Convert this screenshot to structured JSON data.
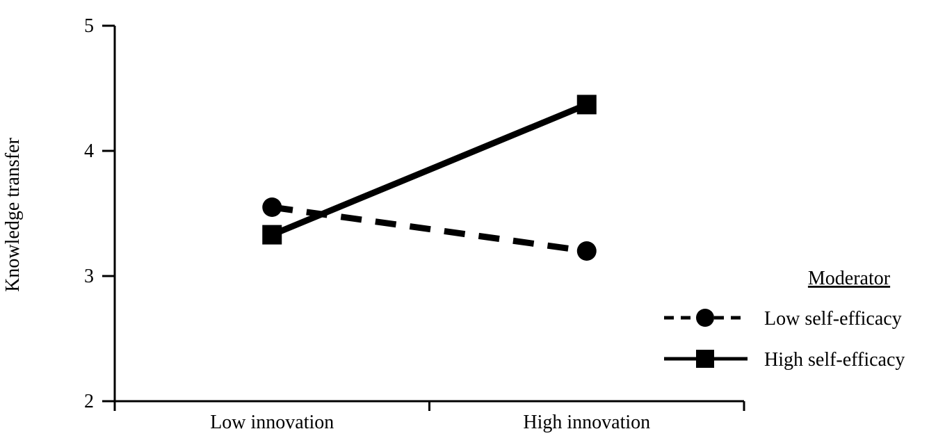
{
  "chart_data": {
    "type": "line",
    "title": "",
    "xlabel": "",
    "ylabel": "Knowledge transfer",
    "categories": [
      "Low innovation",
      "High innovation"
    ],
    "ylim": [
      2,
      5
    ],
    "yticks": [
      2,
      3,
      4,
      5
    ],
    "grid": false,
    "legend": {
      "title": "Moderator",
      "position": "right"
    },
    "series": [
      {
        "name": "Low self-efficacy",
        "values": [
          3.55,
          3.2
        ],
        "marker": "circle",
        "line_style": "dashed",
        "color": "#000000"
      },
      {
        "name": "High self-efficacy",
        "values": [
          3.33,
          4.37
        ],
        "marker": "square",
        "line_style": "solid",
        "color": "#000000"
      }
    ]
  }
}
